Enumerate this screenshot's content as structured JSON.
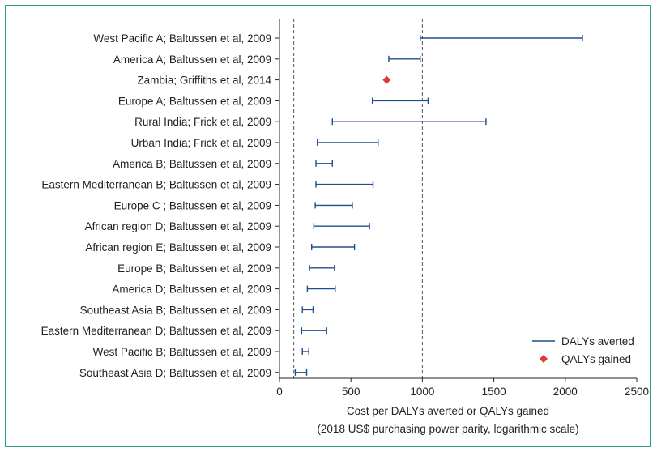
{
  "chart_data": {
    "type": "scatter",
    "chart_subtype": "horizontal-interval-plot",
    "categories": [
      "West Pacific A; Baltussen et al, 2009",
      "America A; Baltussen et al, 2009",
      "Zambia; Griffiths et al, 2014",
      "Europe A; Baltussen et al, 2009",
      "Rural India; Frick et al, 2009",
      "Urban India; Frick et al, 2009",
      "America B; Baltussen et al, 2009",
      "Eastern Mediterranean B; Baltussen et al, 2009",
      "Europe C ; Baltussen et al, 2009",
      "African region D; Baltussen et al, 2009",
      "African region E; Baltussen et al, 2009",
      "Europe B; Baltussen et al, 2009",
      "America D; Baltussen et al, 2009",
      "Southeast Asia B; Baltussen et al, 2009",
      "Eastern Mediterranean D; Baltussen et al, 2009",
      "West Pacific B; Baltussen et al, 2009",
      "Southeast Asia D; Baltussen et al, 2009"
    ],
    "series": [
      {
        "name": "DALYs averted",
        "kind": "range",
        "color": "#1f4e8c",
        "ranges": [
          [
            985,
            2120
          ],
          [
            765,
            985
          ],
          null,
          [
            650,
            1040
          ],
          [
            370,
            1445
          ],
          [
            265,
            690
          ],
          [
            255,
            370
          ],
          [
            255,
            655
          ],
          [
            250,
            510
          ],
          [
            240,
            630
          ],
          [
            225,
            525
          ],
          [
            210,
            385
          ],
          [
            195,
            390
          ],
          [
            160,
            235
          ],
          [
            155,
            330
          ],
          [
            160,
            205
          ],
          [
            110,
            190
          ]
        ]
      },
      {
        "name": "QALYs gained",
        "kind": "point",
        "color": "#e03a2f",
        "values": [
          null,
          null,
          750,
          null,
          null,
          null,
          null,
          null,
          null,
          null,
          null,
          null,
          null,
          null,
          null,
          null,
          null
        ]
      }
    ],
    "xlim": [
      0,
      2500
    ],
    "xticks": [
      "0",
      "500",
      "1000",
      "1500",
      "2000",
      "2500"
    ],
    "reference_lines": [
      100,
      1000
    ],
    "xlabel_lines": [
      "Cost per DALYs averted or QALYs gained",
      "(2018 US$ purchasing power parity, logarithmic scale)"
    ],
    "legend": {
      "placement": "bottom-right",
      "entries": [
        {
          "label": "DALYs averted",
          "symbol": "line",
          "color": "#1f4e8c"
        },
        {
          "label": "QALYs gained",
          "symbol": "diamond",
          "color": "#e03a2f"
        }
      ]
    },
    "grid": false
  }
}
